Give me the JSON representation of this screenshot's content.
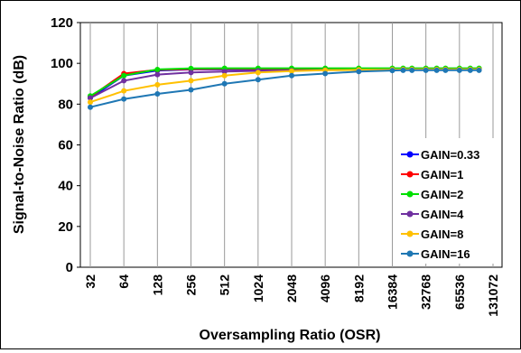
{
  "chart_data": {
    "type": "line",
    "xlabel": "Oversampling Ratio (OSR)",
    "ylabel": "Signal-to-Noise Ratio (dB)",
    "ylim": [
      0,
      120
    ],
    "yticks": [
      0,
      20,
      40,
      60,
      80,
      100,
      120
    ],
    "x_scale": "log2",
    "xlim": [
      32,
      131072
    ],
    "xticks": [
      "32",
      "64",
      "128",
      "256",
      "512",
      "1024",
      "2048",
      "4096",
      "8192",
      "16384",
      "32768",
      "65536",
      "131072"
    ],
    "grid": "vertical",
    "legend_position": "bottom-right",
    "x": [
      32,
      64,
      128,
      256,
      512,
      1024,
      2048,
      4096,
      8192,
      16384,
      20480,
      24576,
      32768,
      40960,
      49152,
      65536,
      81920,
      98304
    ],
    "series": [
      {
        "name": "GAIN=0.33",
        "color": "#0000ff",
        "values": [
          83,
          94,
          96.5,
          97,
          97,
          97,
          97,
          97,
          97,
          97,
          97,
          97,
          97,
          97,
          97,
          97,
          97,
          97
        ]
      },
      {
        "name": "GAIN=1",
        "color": "#ff0000",
        "values": [
          83.5,
          95,
          96.8,
          97.2,
          97.3,
          97.3,
          97.3,
          97.3,
          97.3,
          97.3,
          97.3,
          97.3,
          97.3,
          97.3,
          97.3,
          97.3,
          97.3,
          97.3
        ]
      },
      {
        "name": "GAIN=2",
        "color": "#00e000",
        "values": [
          84,
          94,
          97,
          97.5,
          97.6,
          97.6,
          97.6,
          97.6,
          97.6,
          97.6,
          97.6,
          97.6,
          97.6,
          97.6,
          97.6,
          97.6,
          97.6,
          97.6
        ]
      },
      {
        "name": "GAIN=4",
        "color": "#7030a0",
        "values": [
          83,
          91.5,
          94.5,
          95.5,
          96,
          96.3,
          96.5,
          96.7,
          96.8,
          96.9,
          97,
          97,
          97,
          97,
          97,
          97,
          97,
          97
        ]
      },
      {
        "name": "GAIN=8",
        "color": "#ffc000",
        "values": [
          81,
          86.5,
          89.5,
          91.5,
          94,
          95.5,
          96.2,
          96.6,
          96.8,
          96.9,
          97,
          97,
          97,
          97,
          97,
          97,
          97,
          97
        ]
      },
      {
        "name": "GAIN=16",
        "color": "#1f77b4",
        "values": [
          78.5,
          82.5,
          85,
          87,
          90,
          92,
          94,
          95,
          96,
          96.5,
          96.6,
          96.6,
          96.6,
          96.6,
          96.6,
          96.6,
          96.6,
          96.6
        ]
      }
    ]
  }
}
